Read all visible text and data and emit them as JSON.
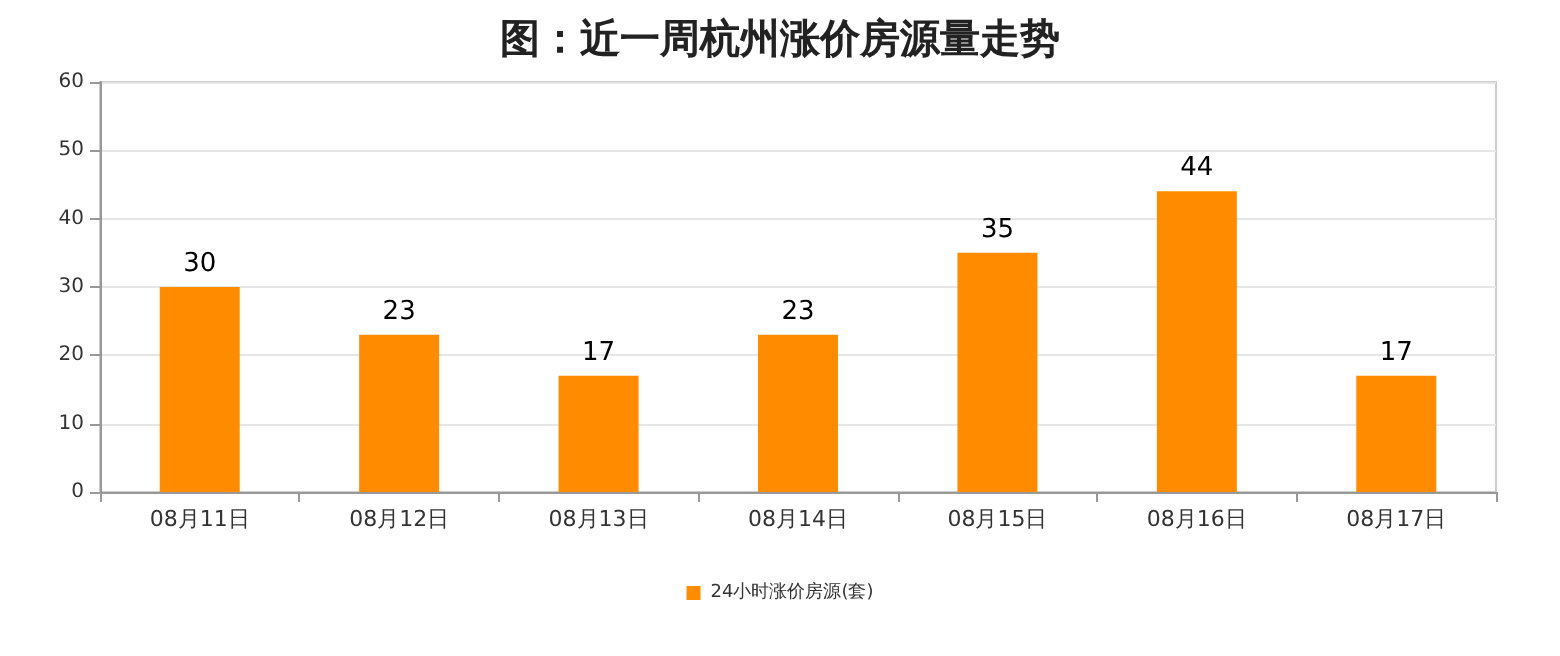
{
  "chart_data": {
    "type": "bar",
    "title": "图：近一周杭州涨价房源量走势",
    "categories": [
      "08月11日",
      "08月12日",
      "08月13日",
      "08月14日",
      "08月15日",
      "08月16日",
      "08月17日"
    ],
    "series": [
      {
        "name": "24小时涨价房源(套)",
        "color": "#ff8c00",
        "values": [
          30,
          23,
          17,
          23,
          35,
          44,
          17
        ]
      }
    ],
    "ylim": [
      0,
      60
    ],
    "yticks": [
      0,
      10,
      20,
      30,
      40,
      50,
      60
    ],
    "grid": "y",
    "legend": "bottom",
    "data_labels": true
  }
}
